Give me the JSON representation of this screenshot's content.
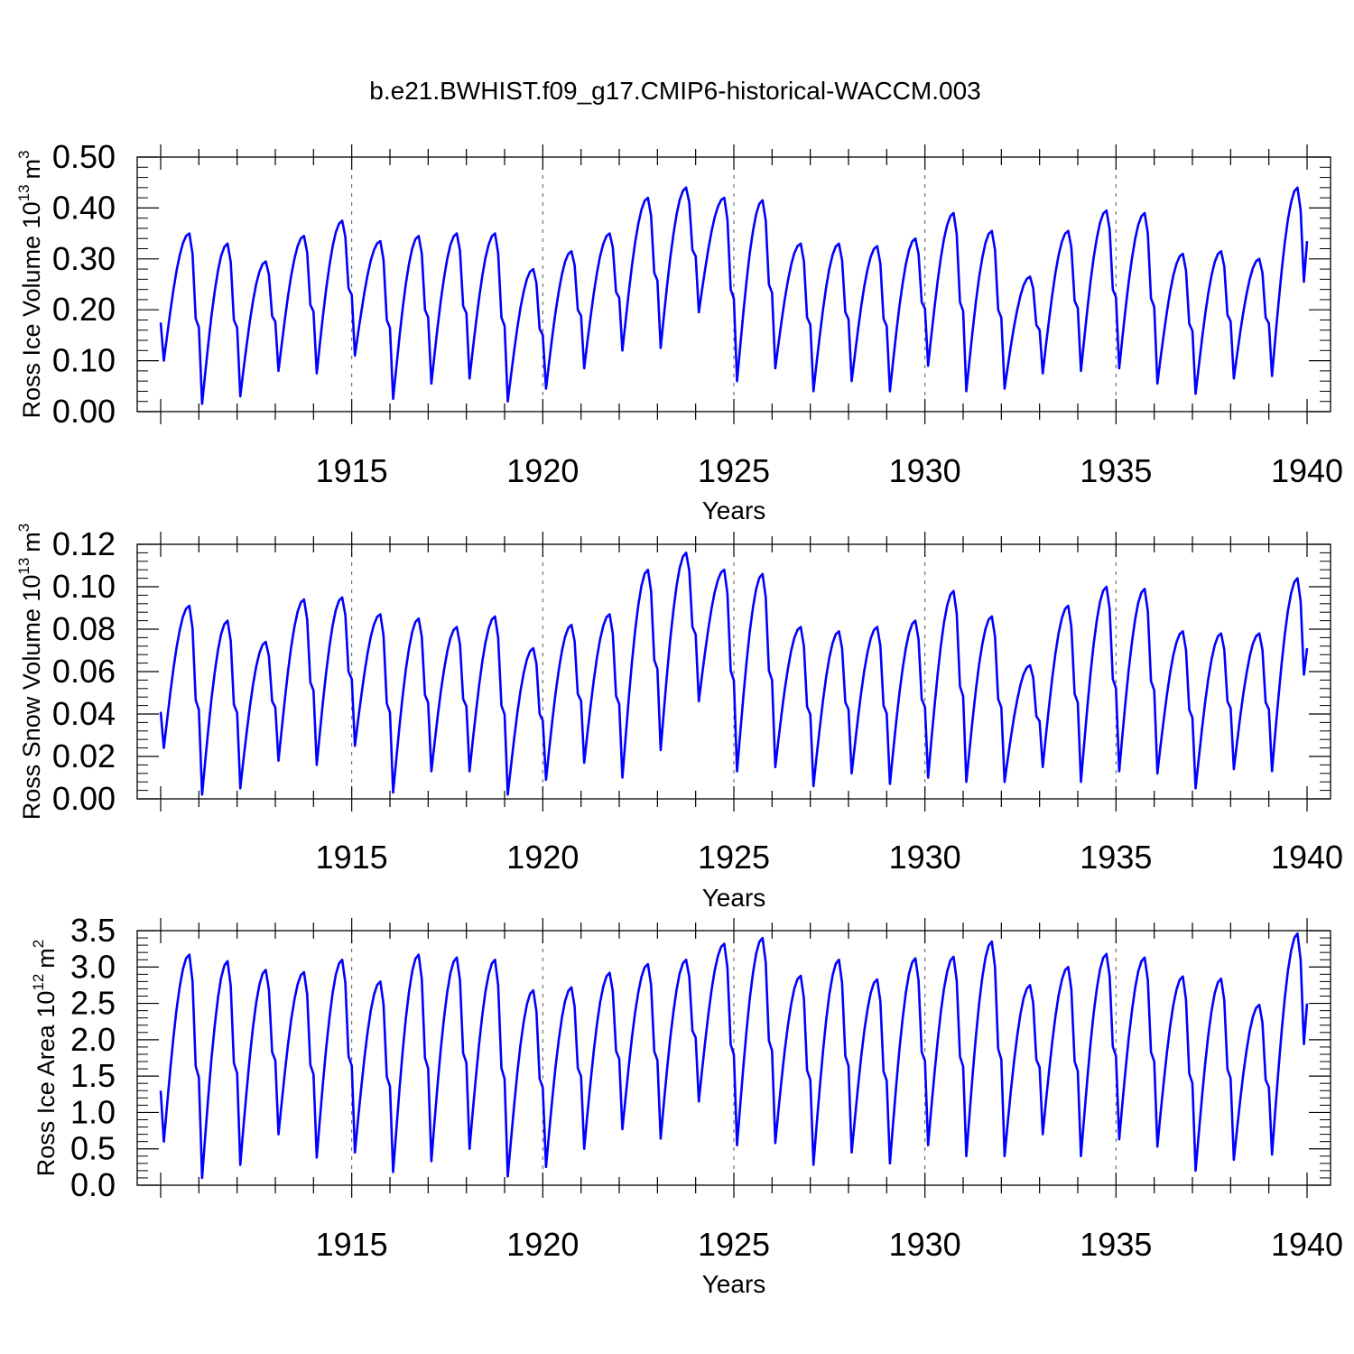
{
  "title": "b.e21.BWHIST.f09_g17.CMIP6-historical-WACCM.003",
  "chart_data": [
    {
      "type": "line",
      "ylabel_main": "Ross Ice Volume 10",
      "ylabel_exp": "13",
      "ylabel_unit": "m",
      "ylabel_unit_exp": "3",
      "xlabel": "Years",
      "xlim": [
        1910.0,
        1940.0
      ],
      "ylim": [
        0.0,
        0.5
      ],
      "yticks": [
        "0.00",
        "0.10",
        "0.20",
        "0.30",
        "0.40",
        "0.50"
      ],
      "xticks": [
        "1915",
        "1920",
        "1925",
        "1930",
        "1935",
        "1940"
      ],
      "x_grid_years": [
        1915,
        1920,
        1925,
        1930,
        1935
      ],
      "line_color": "#0000ff",
      "maxima": [
        0.35,
        0.33,
        0.295,
        0.345,
        0.375,
        0.335,
        0.345,
        0.35,
        0.35,
        0.28,
        0.315,
        0.35,
        0.42,
        0.44,
        0.42,
        0.415,
        0.33,
        0.33,
        0.325,
        0.34,
        0.39,
        0.355,
        0.265,
        0.355,
        0.395,
        0.39,
        0.31,
        0.315,
        0.3,
        0.44
      ],
      "minima": [
        0.1,
        0.015,
        0.03,
        0.08,
        0.075,
        0.11,
        0.025,
        0.055,
        0.065,
        0.02,
        0.045,
        0.085,
        0.12,
        0.125,
        0.195,
        0.06,
        0.085,
        0.04,
        0.06,
        0.04,
        0.09,
        0.04,
        0.045,
        0.075,
        0.08,
        0.085,
        0.055,
        0.035,
        0.065,
        0.07
      ],
      "start_value": 0.175,
      "end_value": 0.335
    },
    {
      "type": "line",
      "ylabel_main": "Ross Snow Volume 10",
      "ylabel_exp": "13",
      "ylabel_unit": "m",
      "ylabel_unit_exp": "3",
      "xlabel": "Years",
      "xlim": [
        1910.0,
        1940.0
      ],
      "ylim": [
        0.0,
        0.12
      ],
      "yticks": [
        "0.00",
        "0.02",
        "0.04",
        "0.06",
        "0.08",
        "0.10",
        "0.12"
      ],
      "xticks": [
        "1915",
        "1920",
        "1925",
        "1930",
        "1935",
        "1940"
      ],
      "x_grid_years": [
        1915,
        1920,
        1925,
        1930,
        1935
      ],
      "line_color": "#0000ff",
      "maxima": [
        0.091,
        0.084,
        0.074,
        0.094,
        0.095,
        0.087,
        0.085,
        0.081,
        0.086,
        0.071,
        0.082,
        0.087,
        0.108,
        0.116,
        0.108,
        0.106,
        0.081,
        0.079,
        0.081,
        0.084,
        0.098,
        0.086,
        0.063,
        0.091,
        0.1,
        0.099,
        0.079,
        0.078,
        0.078,
        0.104
      ],
      "minima": [
        0.024,
        0.002,
        0.005,
        0.018,
        0.016,
        0.025,
        0.003,
        0.013,
        0.013,
        0.002,
        0.009,
        0.017,
        0.01,
        0.023,
        0.046,
        0.013,
        0.015,
        0.006,
        0.012,
        0.007,
        0.01,
        0.008,
        0.008,
        0.015,
        0.008,
        0.013,
        0.012,
        0.005,
        0.014,
        0.013
      ],
      "start_value": 0.041,
      "end_value": 0.071
    },
    {
      "type": "line",
      "ylabel_main": "Ross Ice Area 10",
      "ylabel_exp": "12",
      "ylabel_unit": "m",
      "ylabel_unit_exp": "2",
      "xlabel": "Years",
      "xlim": [
        1910.0,
        1940.0
      ],
      "ylim": [
        0.0,
        3.5
      ],
      "yticks": [
        "0.0",
        "0.5",
        "1.0",
        "1.5",
        "2.0",
        "2.5",
        "3.0",
        "3.5"
      ],
      "xticks": [
        "1915",
        "1920",
        "1925",
        "1930",
        "1935",
        "1940"
      ],
      "x_grid_years": [
        1915,
        1920,
        1925,
        1930,
        1935
      ],
      "line_color": "#0000ff",
      "maxima": [
        3.17,
        3.08,
        2.96,
        2.93,
        3.1,
        2.8,
        3.17,
        3.13,
        3.1,
        2.68,
        2.72,
        2.92,
        3.04,
        3.1,
        3.32,
        3.4,
        2.88,
        3.1,
        2.83,
        3.12,
        3.14,
        3.35,
        2.75,
        3.0,
        3.18,
        3.13,
        2.87,
        2.84,
        2.48,
        3.46
      ],
      "minima": [
        0.6,
        0.1,
        0.28,
        0.7,
        0.38,
        0.45,
        0.18,
        0.33,
        0.5,
        0.12,
        0.25,
        0.5,
        0.77,
        0.64,
        1.15,
        0.55,
        0.58,
        0.28,
        0.45,
        0.3,
        0.55,
        0.4,
        0.4,
        0.7,
        0.4,
        0.63,
        0.53,
        0.2,
        0.35,
        0.42
      ],
      "start_value": 1.3,
      "end_value": 2.5
    }
  ]
}
